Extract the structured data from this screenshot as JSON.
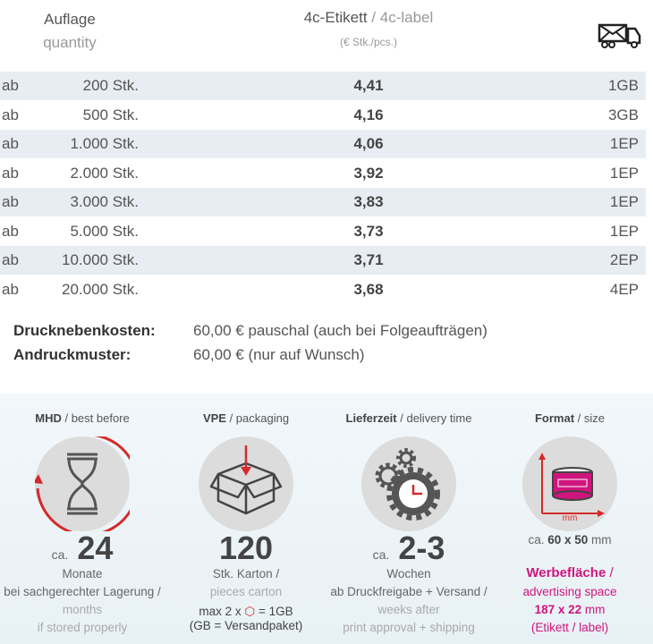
{
  "header": {
    "quantity_de": "Auflage",
    "quantity_en": "quantity",
    "product_de": "4c-Etikett",
    "product_sep": " / ",
    "product_en": "4c-label",
    "unit": "(€ Stk./pcs.)",
    "shipping_icon": "mail-truck-icon"
  },
  "rows": [
    {
      "prefix": "ab",
      "quantity": "200 Stk.",
      "price": "4,41",
      "shipping": "1GB"
    },
    {
      "prefix": "ab",
      "quantity": "500 Stk.",
      "price": "4,16",
      "shipping": "3GB"
    },
    {
      "prefix": "ab",
      "quantity": "1.000 Stk.",
      "price": "4,06",
      "shipping": "1EP"
    },
    {
      "prefix": "ab",
      "quantity": "2.000 Stk.",
      "price": "3,92",
      "shipping": "1EP"
    },
    {
      "prefix": "ab",
      "quantity": "3.000 Stk.",
      "price": "3,83",
      "shipping": "1EP"
    },
    {
      "prefix": "ab",
      "quantity": "5.000 Stk.",
      "price": "3,73",
      "shipping": "1EP"
    },
    {
      "prefix": "ab",
      "quantity": "10.000 Stk.",
      "price": "3,71",
      "shipping": "2EP"
    },
    {
      "prefix": "ab",
      "quantity": "20.000 Stk.",
      "price": "3,68",
      "shipping": "4EP"
    }
  ],
  "costs": [
    {
      "label": "Drucknebenkosten:",
      "value": "60,00 € pauschal (auch bei Folgeaufträgen)"
    },
    {
      "label": "Andruckmuster:",
      "value": "60,00 € (nur auf Wunsch)"
    }
  ],
  "info": {
    "mhd": {
      "title_de": "MHD",
      "title_en": " / best before",
      "prefix": "ca.",
      "value": "24",
      "line1": "Monate",
      "line2": "bei sachgerechter Lagerung /",
      "line3": "months",
      "line4": "if stored properly"
    },
    "vpe": {
      "title_de": "VPE",
      "title_en": " / packaging",
      "value": "120",
      "line1": "Stk. Karton /",
      "line2": "pieces carton",
      "line3a": "max 2 x",
      "line3b": "= 1GB",
      "line4": "(GB = Versandpaket)"
    },
    "delivery": {
      "title_de": "Lieferzeit",
      "title_en": " / delivery time",
      "prefix": "ca.",
      "value": "2-3",
      "line1": "Wochen",
      "line2": "ab Druckfreigabe + Versand /",
      "line3": "weeks after",
      "line4": "print approval + shipping"
    },
    "format": {
      "title_de": "Format",
      "title_en": " / size",
      "axis_unit": "mm",
      "size_prefix": "ca.",
      "size_value": "60 x 50",
      "size_unit": "mm",
      "space_de": "Werbefläche",
      "space_sep": " /",
      "space_en": "advertising space",
      "space_value": "187 x 22",
      "space_unit": "mm",
      "space_note": "(Etikett / label)"
    }
  },
  "colors": {
    "accent_red": "#d42a2a",
    "accent_pink": "#d0157e",
    "stripe": "#e8ecf3"
  }
}
